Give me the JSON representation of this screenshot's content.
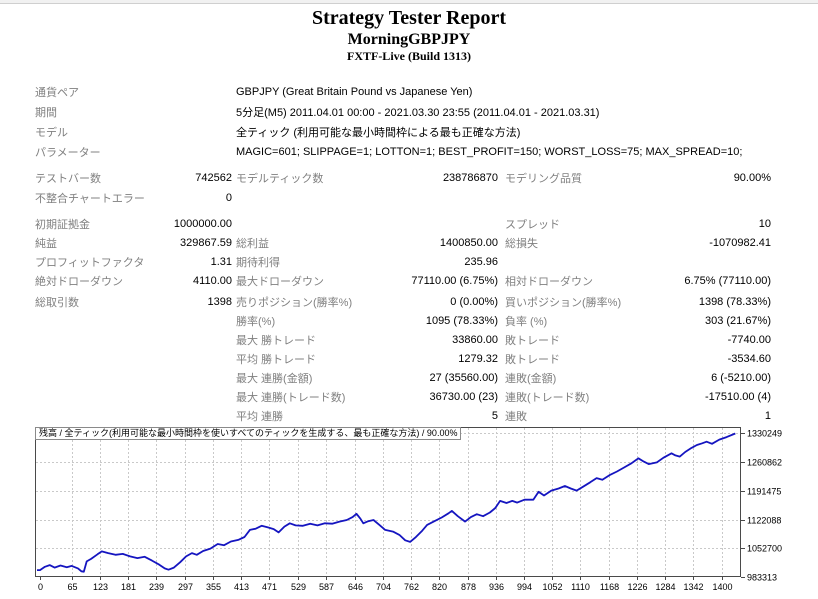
{
  "header": {
    "title": "Strategy Tester Report",
    "expert_name": "MorningGBPJPY",
    "server": "FXTF-Live (Build 1313)"
  },
  "table": {
    "sections": [
      {
        "gap": "m6",
        "rowh": "h20",
        "rows": [
          {
            "l1": "通貨ペア",
            "span": "GBPJPY (Great Britain Pound vs Japanese Yen)"
          },
          {
            "l1": "期間",
            "span": "5分足(M5) 2011.04.01 00:00 - 2021.03.30 23:55 (2011.04.01 - 2021.03.31)"
          },
          {
            "l1": "モデル",
            "span": "全ティック (利用可能な最小時間枠による最も正確な方法)"
          },
          {
            "l1": "パラメーター",
            "span": "MAGIC=601; SLIPPAGE=1; LOTTON=1; BEST_PROFIT=150; WORST_LOSS=75; MAX_SPREAD=10;"
          }
        ]
      },
      {
        "gap": "m6",
        "rowh": "h20",
        "rows": [
          {
            "l1": "テストバー数",
            "v1": "742562",
            "l2": "モデルティック数",
            "v2": "238786870",
            "l3": "モデリング品質",
            "v3": "90.00%"
          },
          {
            "l1": "不整合チャートエラー",
            "v1": "0"
          }
        ]
      },
      {
        "gap": "m2",
        "rowh": "h19",
        "rows": [
          {
            "l1": "初期証拠金",
            "v1": "1000000.00",
            "l3": "スプレッド",
            "v3": "10"
          },
          {
            "l1": "純益",
            "v1": "329867.59",
            "l2": "総利益",
            "v2": "1400850.00",
            "l3": "総損失",
            "v3": "-1070982.41"
          },
          {
            "l1": "プロフィットファクタ",
            "v1": "1.31",
            "l2": "期待利得",
            "v2": "235.96"
          },
          {
            "l1": "絶対ドローダウン",
            "v1": "4110.00",
            "l2": "最大ドローダウン",
            "v2": "77110.00 (6.75%)",
            "l3": "相対ドローダウン",
            "v3": "6.75% (77110.00)"
          }
        ]
      },
      {
        "gap": "",
        "rowh": "h19",
        "rows": [
          {
            "l1": "総取引数",
            "v1": "1398",
            "l2": "売りポジション(勝率%)",
            "v2": "0 (0.00%)",
            "l3": "買いポジション(勝率%)",
            "v3": "1398 (78.33%)"
          },
          {
            "l2": "勝率(%)",
            "v2": "1095 (78.33%)",
            "l3": "負率 (%)",
            "v3": "303 (21.67%)"
          },
          {
            "l2": "最大 勝トレード",
            "v2": "33860.00",
            "l3": "敗トレード",
            "v3": "-7740.00"
          },
          {
            "l2": "平均 勝トレード",
            "v2": "1279.32",
            "l3": "敗トレード",
            "v3": "-3534.60"
          },
          {
            "l2": "最大 連勝(金額)",
            "v2": "27 (35560.00)",
            "l3": "連敗(金額)",
            "v3": "6 (-5210.00)"
          },
          {
            "l2": "最大 連勝(トレード数)",
            "v2": "36730.00 (23)",
            "l3": "連敗(トレード数)",
            "v3": "-17510.00 (4)"
          },
          {
            "l2": "平均 連勝",
            "v2": "5",
            "l3": "連敗",
            "v3": "1"
          }
        ]
      }
    ]
  },
  "chart_data": {
    "type": "line",
    "title": "残高 / 全ティック(利用可能な最小時間枠を使いすべてのティックを生成する、最も正確な方法) / 90.00%",
    "grid": true,
    "line_color": "#1515c0",
    "xlim": [
      0,
      1448
    ],
    "ylim": [
      983313,
      1345500
    ],
    "x_ticks": [
      0,
      65,
      123,
      181,
      239,
      297,
      355,
      413,
      471,
      529,
      587,
      646,
      704,
      762,
      820,
      878,
      936,
      994,
      1052,
      1110,
      1168,
      1226,
      1284,
      1342,
      1400
    ],
    "y_ticks": [
      983313,
      1052700,
      1122088,
      1191475,
      1260862,
      1330249
    ],
    "series": [
      {
        "name": "残高",
        "x": [
          0,
          10,
          20,
          30,
          42,
          55,
          65,
          78,
          85,
          90,
          96,
          105,
          118,
          127,
          140,
          155,
          170,
          185,
          200,
          215,
          230,
          245,
          256,
          264,
          275,
          288,
          300,
          312,
          322,
          335,
          350,
          365,
          378,
          392,
          407,
          420,
          431,
          443,
          455,
          468,
          480,
          490,
          502,
          513,
          525,
          540,
          555,
          570,
          585,
          600,
          615,
          630,
          642,
          650,
          658,
          664,
          674,
          685,
          697,
          709,
          725,
          738,
          750,
          760,
          772,
          785,
          795,
          810,
          825,
          839,
          846,
          858,
          873,
          885,
          897,
          910,
          924,
          935,
          945,
          958,
          970,
          980,
          995,
          1013,
          1024,
          1035,
          1050,
          1065,
          1078,
          1090,
          1102,
          1115,
          1130,
          1143,
          1155,
          1171,
          1185,
          1200,
          1215,
          1229,
          1240,
          1250,
          1267,
          1280,
          1297,
          1305,
          1314,
          1325,
          1338,
          1349,
          1360,
          1369,
          1380,
          1395,
          1410,
          1428
        ],
        "y": [
          1000000,
          1008000,
          1012000,
          1006000,
          1011000,
          1007000,
          1010000,
          1004000,
          997000,
          996000,
          1021000,
          1027000,
          1038000,
          1045000,
          1041000,
          1037000,
          1039000,
          1033000,
          1029000,
          1032000,
          1023000,
          1013000,
          1004000,
          1001000,
          1006000,
          1019000,
          1033000,
          1041000,
          1037000,
          1046000,
          1052000,
          1063000,
          1060000,
          1069000,
          1073000,
          1080000,
          1097000,
          1100000,
          1107000,
          1103000,
          1099000,
          1091000,
          1105000,
          1113000,
          1108000,
          1107000,
          1112000,
          1108000,
          1113000,
          1112000,
          1117000,
          1121000,
          1128000,
          1136000,
          1124000,
          1113000,
          1118000,
          1121000,
          1109000,
          1097000,
          1093000,
          1085000,
          1072000,
          1068000,
          1080000,
          1095000,
          1109000,
          1118000,
          1127000,
          1137000,
          1143000,
          1130000,
          1117000,
          1128000,
          1135000,
          1130000,
          1139000,
          1150000,
          1167000,
          1162000,
          1167000,
          1163000,
          1170000,
          1170000,
          1189000,
          1180000,
          1192000,
          1197000,
          1203000,
          1197000,
          1192000,
          1201000,
          1212000,
          1222000,
          1218000,
          1230000,
          1238000,
          1248000,
          1258000,
          1270000,
          1262000,
          1256000,
          1260000,
          1271000,
          1282000,
          1277000,
          1274000,
          1285000,
          1295000,
          1302000,
          1306000,
          1310000,
          1305000,
          1315000,
          1321000,
          1329868
        ]
      }
    ]
  }
}
